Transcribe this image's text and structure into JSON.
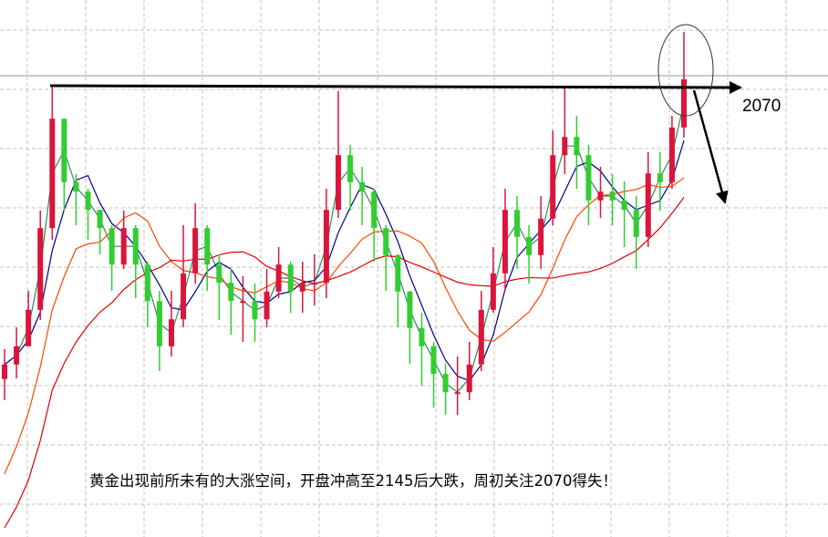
{
  "chart_data": {
    "type": "candlestick",
    "title": "",
    "xlabel": "",
    "ylabel": "",
    "grid": true,
    "colors": {
      "up": "#dc143c",
      "down": "#32cd32",
      "ma_fast": "#2e8b57",
      "ma_mid": "#00008b",
      "ma_slow": "#ff4500",
      "ma_long": "#e00000",
      "grid": "#c0c0c0",
      "annotation": "#000000"
    },
    "closes": [
      1689,
      1714,
      1764,
      1876,
      2026,
      1939,
      1926,
      1901,
      1876,
      1826,
      1876,
      1826,
      1776,
      1714,
      1751,
      1814,
      1876,
      1826,
      1801,
      1776,
      1776,
      1751,
      1789,
      1826,
      1789,
      1801,
      1801,
      1901,
      1976,
      1939,
      1926,
      1876,
      1839,
      1789,
      1739,
      1714,
      1676,
      1651,
      1651,
      1689,
      1764,
      1814,
      1901,
      1864,
      1839,
      1889,
      1976,
      2001,
      1976,
      1914,
      1926,
      1914,
      1901,
      1864,
      1951,
      1939,
      2014,
      2080
    ],
    "highs": [
      1710,
      1740,
      1790,
      1900,
      2070,
      1990,
      1950,
      1930,
      1900,
      1880,
      1900,
      1880,
      1830,
      1790,
      1790,
      1880,
      1910,
      1880,
      1840,
      1820,
      1810,
      1800,
      1820,
      1850,
      1830,
      1830,
      1840,
      1930,
      2064,
      1990,
      1960,
      1930,
      1880,
      1840,
      1790,
      1760,
      1720,
      1690,
      1700,
      1720,
      1790,
      1850,
      1930,
      1920,
      1880,
      1920,
      2010,
      2070,
      2030,
      1990,
      1960,
      1950,
      1940,
      1920,
      1980,
      1980,
      2030,
      2145
    ],
    "lows": [
      1640,
      1670,
      1720,
      1750,
      1860,
      1900,
      1880,
      1860,
      1840,
      1790,
      1820,
      1780,
      1740,
      1680,
      1700,
      1740,
      1800,
      1790,
      1750,
      1730,
      1720,
      1720,
      1740,
      1780,
      1760,
      1760,
      1770,
      1780,
      1890,
      1900,
      1880,
      1830,
      1790,
      1740,
      1690,
      1660,
      1630,
      1620,
      1620,
      1640,
      1680,
      1760,
      1790,
      1820,
      1800,
      1820,
      1880,
      1950,
      1930,
      1880,
      1890,
      1880,
      1850,
      1820,
      1850,
      1900,
      1930,
      2000
    ]
  },
  "annotations": {
    "level_label": "2070",
    "level_value": 2070,
    "spike_high": 2145,
    "caption": "黄金出现前所未有的大涨空间，开盘冲高至2145后大跌，周初关注2070得失！"
  }
}
